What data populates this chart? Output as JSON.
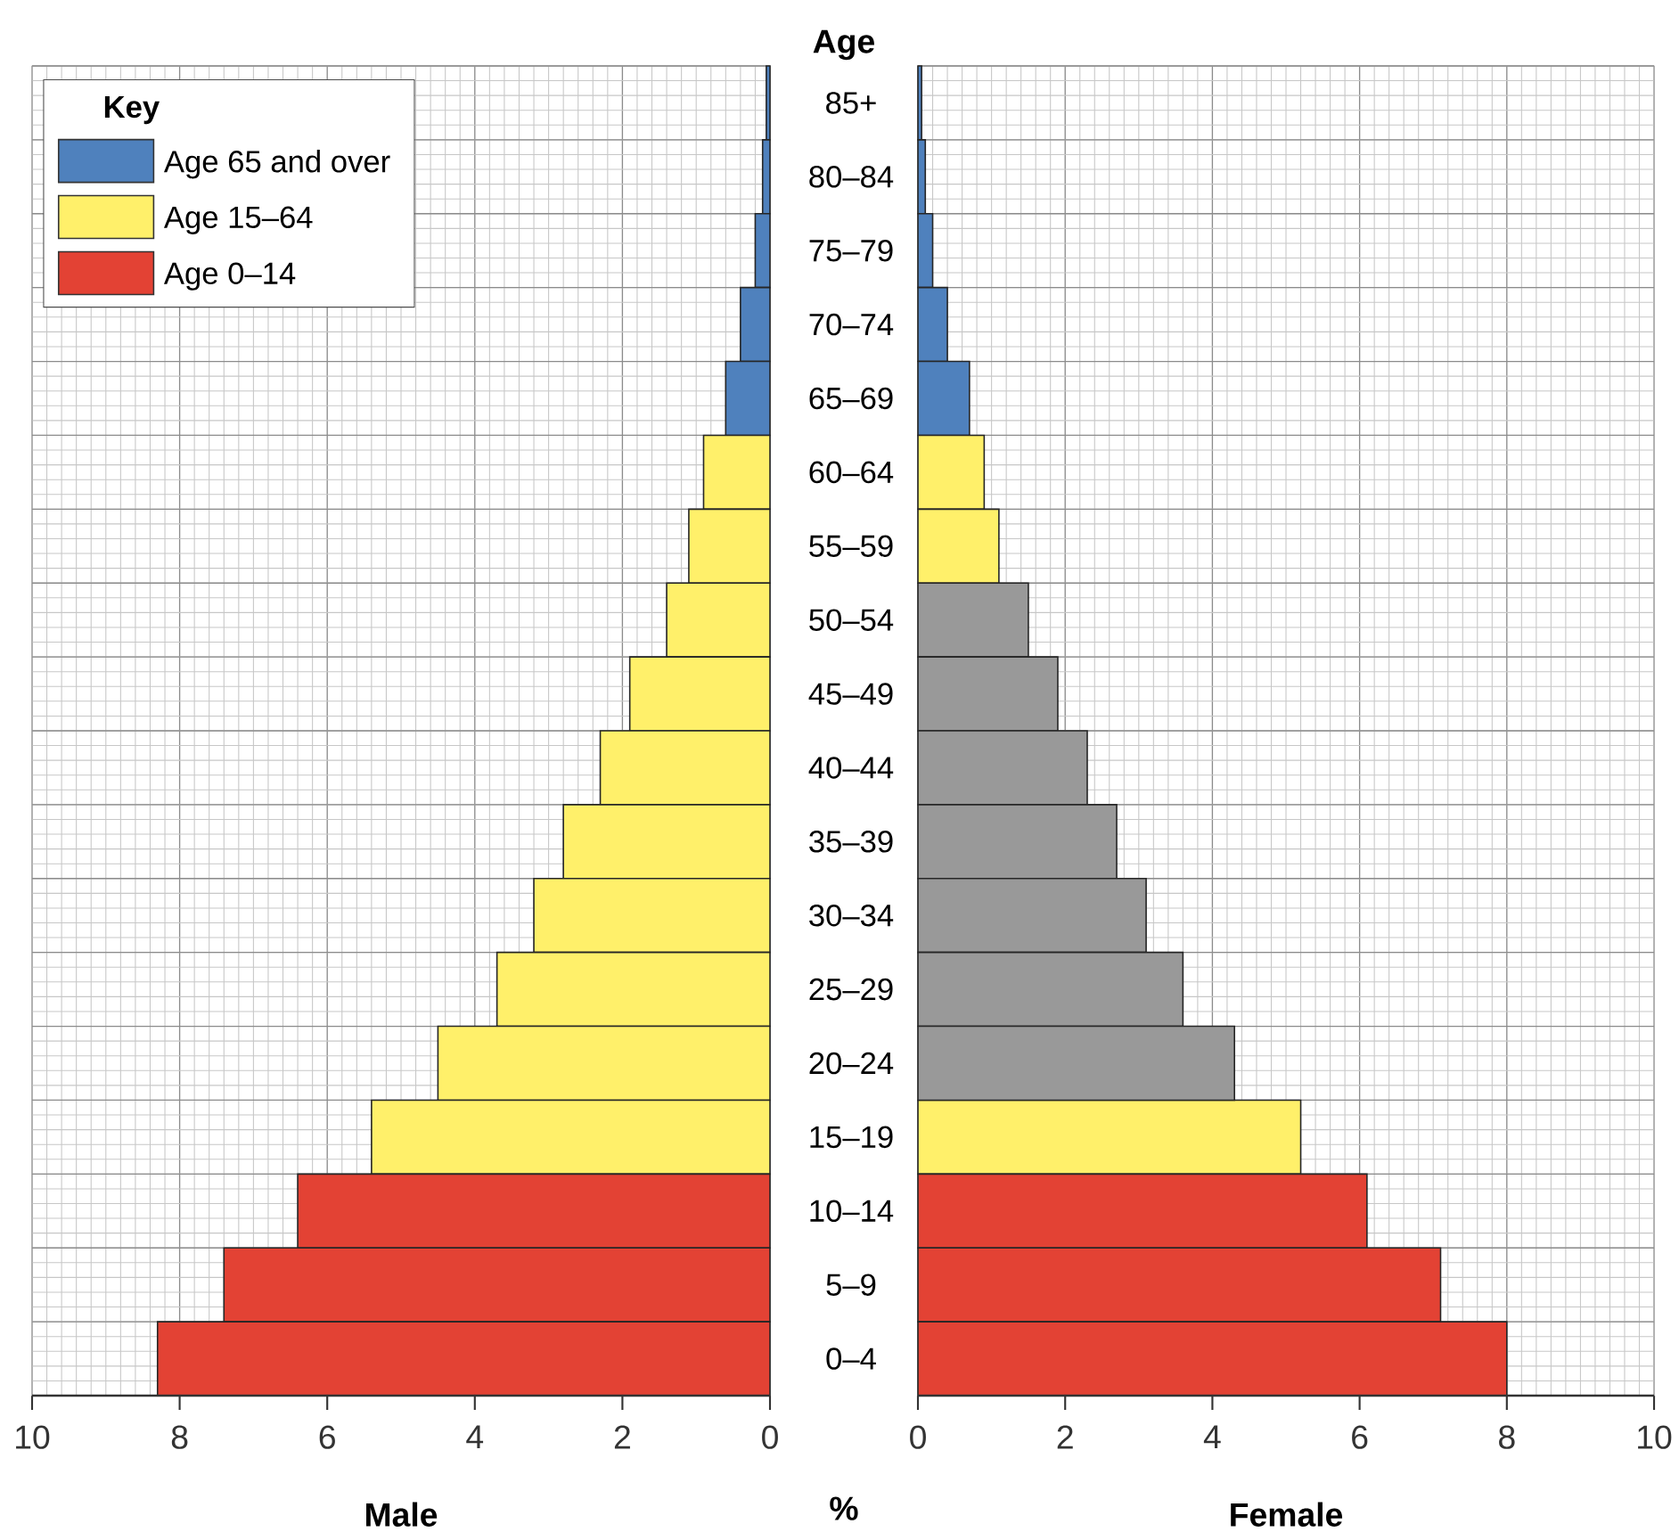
{
  "chart_data": [
    {
      "type": "bar",
      "orientation": "horizontal",
      "xlabel": "Male",
      "ylabel": "Age",
      "legend_title": "Key",
      "annotations": [
        "%"
      ],
      "categories": [
        "85+",
        "80–84",
        "75–79",
        "70–74",
        "65–69",
        "60–64",
        "55–59",
        "50–54",
        "45–49",
        "40–44",
        "35–39",
        "30–34",
        "25–29",
        "20–24",
        "15–19",
        "10–14",
        "5–9",
        "0–4"
      ],
      "series": [
        {
          "name": "Age 65 and over",
          "color": "#4f81bd",
          "values": [
            0.05,
            0.1,
            0.2,
            0.4,
            0.6,
            null,
            null,
            null,
            null,
            null,
            null,
            null,
            null,
            null,
            null,
            null,
            null,
            null
          ]
        },
        {
          "name": "Age 15–64",
          "color": "#fff06a",
          "values": [
            null,
            null,
            null,
            null,
            null,
            0.9,
            1.1,
            1.4,
            1.9,
            2.3,
            2.8,
            3.2,
            3.7,
            4.5,
            5.4,
            null,
            null,
            null
          ]
        },
        {
          "name": "Age 0–14",
          "color": "#e34234",
          "values": [
            null,
            null,
            null,
            null,
            null,
            null,
            null,
            null,
            null,
            null,
            null,
            null,
            null,
            null,
            null,
            6.4,
            7.4,
            8.3
          ]
        }
      ],
      "xlim": [
        10,
        0
      ],
      "xticks": [
        0,
        2,
        4,
        6,
        8,
        10
      ],
      "grid": true,
      "legend": "top left"
    },
    {
      "type": "bar",
      "orientation": "horizontal",
      "xlabel": "Female",
      "categories": [
        null,
        null,
        null,
        null,
        null,
        null,
        null,
        null,
        null,
        null,
        null,
        null,
        null,
        null,
        null,
        null,
        null,
        null
      ],
      "series": [
        {
          "color": "#4f81bd",
          "values": [
            0.05,
            0.1,
            0.2,
            0.4,
            0.7,
            null,
            null,
            null,
            null,
            null,
            null,
            null,
            null,
            null,
            null,
            null,
            null,
            null
          ]
        },
        {
          "color": "#fff06a",
          "values": [
            null,
            null,
            null,
            null,
            null,
            0.9,
            1.1,
            null,
            null,
            null,
            null,
            null,
            null,
            null,
            5.2,
            null,
            null,
            null
          ]
        },
        {
          "color": "#999999",
          "values": [
            null,
            null,
            null,
            null,
            null,
            null,
            null,
            1.5,
            1.9,
            2.3,
            2.7,
            3.1,
            3.6,
            4.3,
            null,
            null,
            null,
            null
          ]
        },
        {
          "color": "#e34234",
          "values": [
            null,
            null,
            null,
            null,
            null,
            null,
            null,
            null,
            null,
            null,
            null,
            null,
            null,
            null,
            null,
            6.1,
            7.1,
            8.0
          ]
        }
      ],
      "xlim": [
        0,
        10
      ],
      "xticks": [
        0,
        2,
        4,
        6,
        8,
        10
      ],
      "grid": true
    }
  ]
}
